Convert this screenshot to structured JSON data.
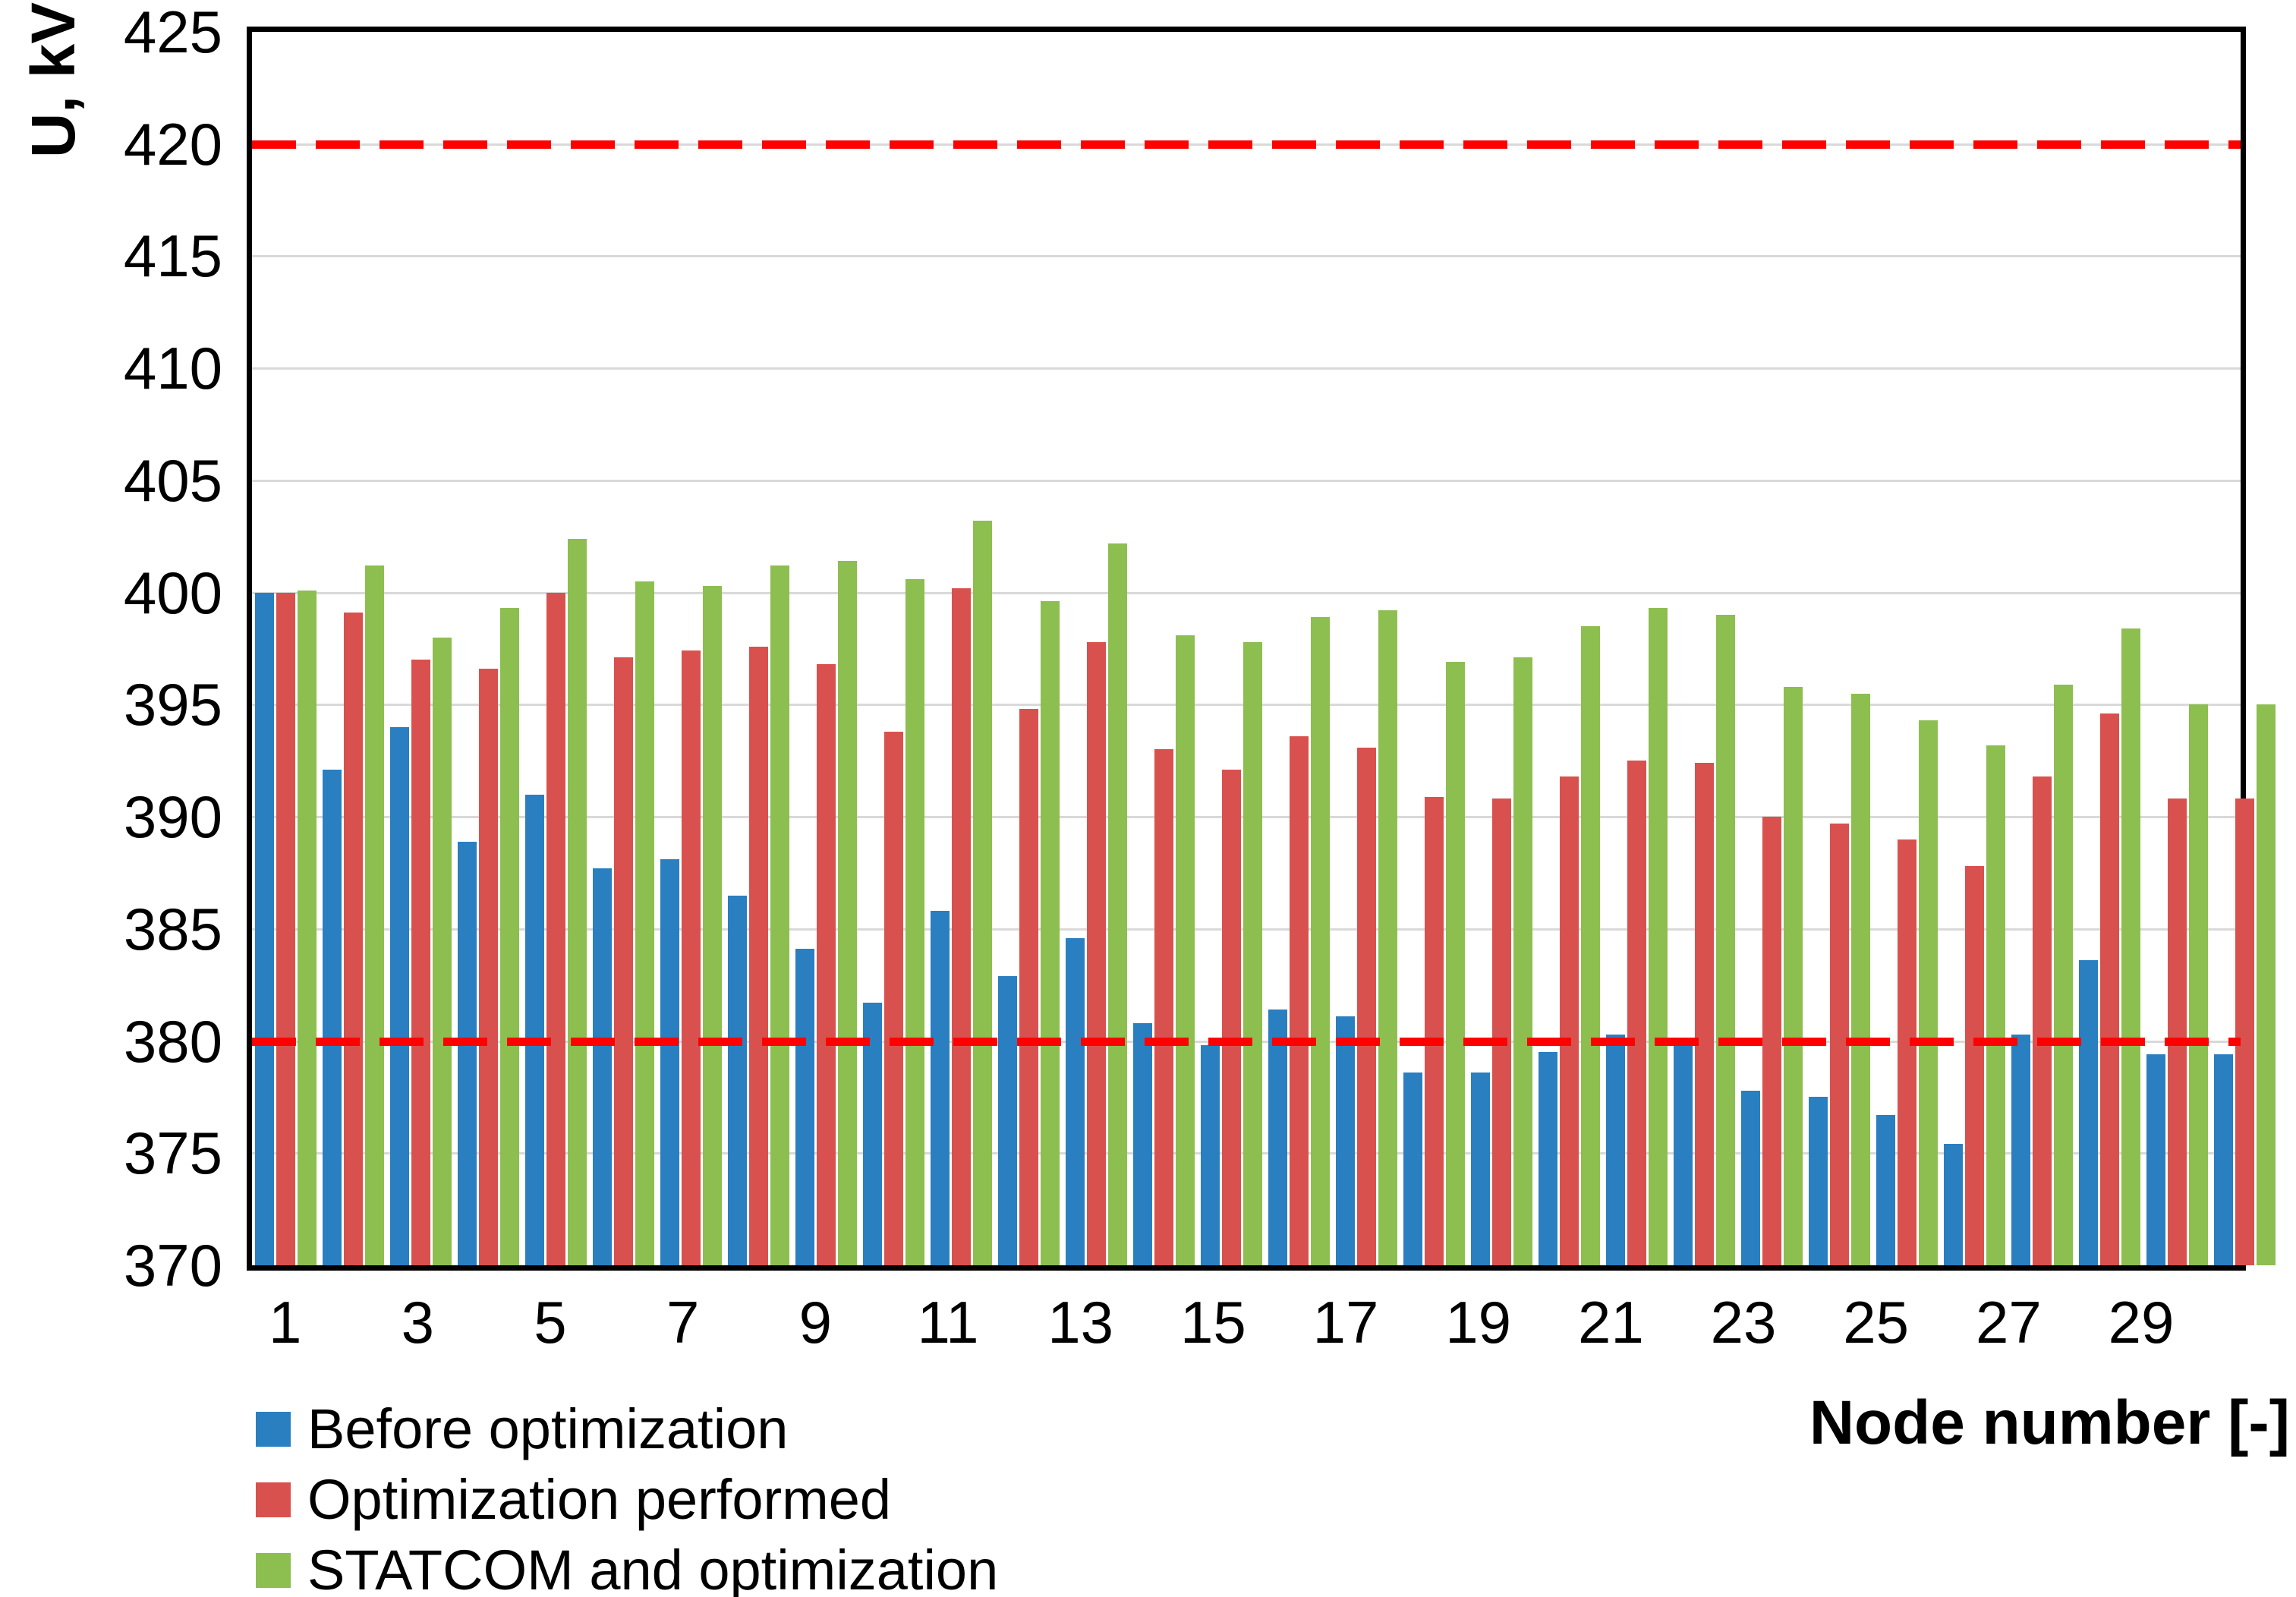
{
  "axes": {
    "y": {
      "label": "U, kV",
      "min": 370,
      "max": 425,
      "tick_step": 5,
      "tick_labels": [
        "425",
        "420",
        "415",
        "410",
        "405",
        "400",
        "395",
        "390",
        "385",
        "380",
        "375",
        "370"
      ],
      "gridline_values": [
        420,
        415,
        410,
        405,
        400,
        395,
        390,
        385,
        380,
        375
      ]
    },
    "x": {
      "label": "Node number [-]",
      "tick_labels": [
        "1",
        "3",
        "5",
        "7",
        "9",
        "11",
        "13",
        "15",
        "17",
        "19",
        "21",
        "23",
        "25",
        "27",
        "29"
      ]
    }
  },
  "colors": {
    "before": "#2a7fc1",
    "optimization": "#d9514e",
    "statcom": "#8dbe50",
    "limit_line": "#ff0000",
    "gridline": "#d9d9d9"
  },
  "chart_data": {
    "type": "bar",
    "title": "",
    "xlabel": "Node number [-]",
    "ylabel": "U, kV",
    "ylim": [
      370,
      425
    ],
    "grid": true,
    "legend_position": "bottom-left",
    "categories": [
      1,
      2,
      3,
      4,
      5,
      6,
      7,
      8,
      9,
      10,
      11,
      12,
      13,
      14,
      15,
      16,
      17,
      18,
      19,
      20,
      21,
      22,
      23,
      24,
      25,
      26,
      27,
      28,
      29,
      30
    ],
    "series": [
      {
        "name": "Before optimization",
        "color": "#2a7fc1",
        "values": [
          400.0,
          392.1,
          394.0,
          388.9,
          391.0,
          387.7,
          388.1,
          386.5,
          384.1,
          381.7,
          385.8,
          382.9,
          384.6,
          380.8,
          379.8,
          381.4,
          381.1,
          378.6,
          378.6,
          379.5,
          380.3,
          380.1,
          377.8,
          377.5,
          376.7,
          375.4,
          380.3,
          383.6,
          379.4,
          379.4
        ]
      },
      {
        "name": "Optimization performed",
        "color": "#d9514e",
        "values": [
          400.0,
          399.1,
          397.0,
          396.6,
          400.0,
          397.1,
          397.4,
          397.6,
          396.8,
          393.8,
          400.2,
          394.8,
          397.8,
          393.0,
          392.1,
          393.6,
          393.1,
          390.9,
          390.8,
          391.8,
          392.5,
          392.4,
          390.0,
          389.7,
          389.0,
          387.8,
          391.8,
          394.6,
          390.8,
          390.8
        ]
      },
      {
        "name": "STATCOM and optimization",
        "color": "#8dbe50",
        "values": [
          400.1,
          401.2,
          398.0,
          399.3,
          402.4,
          400.5,
          400.3,
          401.2,
          401.4,
          400.6,
          403.2,
          399.6,
          402.2,
          398.1,
          397.8,
          398.9,
          399.2,
          396.9,
          397.1,
          398.5,
          399.3,
          399.0,
          395.8,
          395.5,
          394.3,
          393.2,
          395.9,
          398.4,
          395.0,
          395.0
        ]
      }
    ],
    "reference_lines": [
      {
        "value": 420,
        "style": "dashed",
        "color": "#ff0000"
      },
      {
        "value": 380,
        "style": "dashed",
        "color": "#ff0000"
      }
    ]
  }
}
